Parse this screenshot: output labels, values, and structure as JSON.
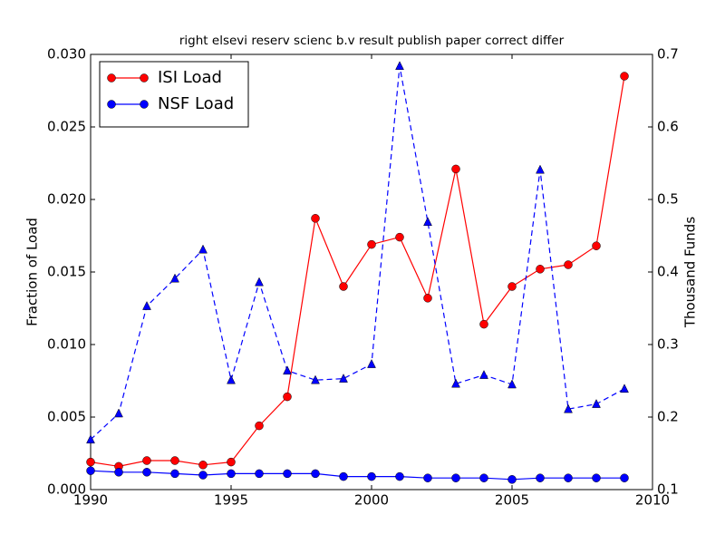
{
  "chart_data": {
    "type": "line",
    "title": "right elsevi reserv scienc b.v result publish paper correct differ",
    "y_label": "Fraction of Load",
    "y2_label": "Thousand Funds",
    "x": [
      1990,
      1991,
      1992,
      1993,
      1994,
      1995,
      1996,
      1997,
      1998,
      1999,
      2000,
      2001,
      2002,
      2003,
      2004,
      2005,
      2006,
      2007,
      2008,
      2009
    ],
    "series": [
      {
        "name": "ISI Load",
        "color": "#ff0000",
        "marker": "circle",
        "dash": "solid",
        "values": [
          0.0019,
          0.0016,
          0.002,
          0.002,
          0.0017,
          0.0019,
          0.0044,
          0.0064,
          0.0187,
          0.014,
          0.0169,
          0.0174,
          0.0132,
          0.0221,
          0.0114,
          0.014,
          0.0152,
          0.0155,
          0.0168,
          0.0285
        ]
      },
      {
        "name": "NSF Load",
        "color": "#0000ff",
        "marker": "circle",
        "dash": "solid",
        "values": [
          0.0013,
          0.0012,
          0.0012,
          0.0011,
          0.001,
          0.0011,
          0.0011,
          0.0011,
          0.0011,
          0.0009,
          0.0009,
          0.0009,
          0.0008,
          0.0008,
          0.0008,
          0.0007,
          0.0008,
          0.0008,
          0.0008,
          0.0008
        ]
      },
      {
        "color": "#0000ff",
        "marker": "triangle",
        "dash": "dashed",
        "axis": "y2",
        "values": [
          0.169,
          0.205,
          0.353,
          0.391,
          0.431,
          0.251,
          0.386,
          0.264,
          0.251,
          0.253,
          0.273,
          0.684,
          0.469,
          0.246,
          0.258,
          0.245,
          0.541,
          0.211,
          0.218,
          0.239
        ]
      }
    ],
    "xlim": [
      1990,
      2010
    ],
    "xticks": [
      1990,
      1995,
      2000,
      2005,
      2010
    ],
    "ylim": [
      0,
      0.03
    ],
    "yticks": [
      {
        "value": 0,
        "label": "0.000"
      },
      {
        "value": 0.005,
        "label": "0.005"
      },
      {
        "value": 0.01,
        "label": "0.010"
      },
      {
        "value": 0.015,
        "label": "0.015"
      },
      {
        "value": 0.02,
        "label": "0.020"
      },
      {
        "value": 0.025,
        "label": "0.025"
      },
      {
        "value": 0.03,
        "label": "0.030"
      }
    ],
    "y2lim": [
      0.1,
      0.7
    ],
    "y2ticks": [
      0.1,
      0.2,
      0.3,
      0.4,
      0.5,
      0.6,
      0.7
    ],
    "legend": "upper left",
    "grid": false
  }
}
